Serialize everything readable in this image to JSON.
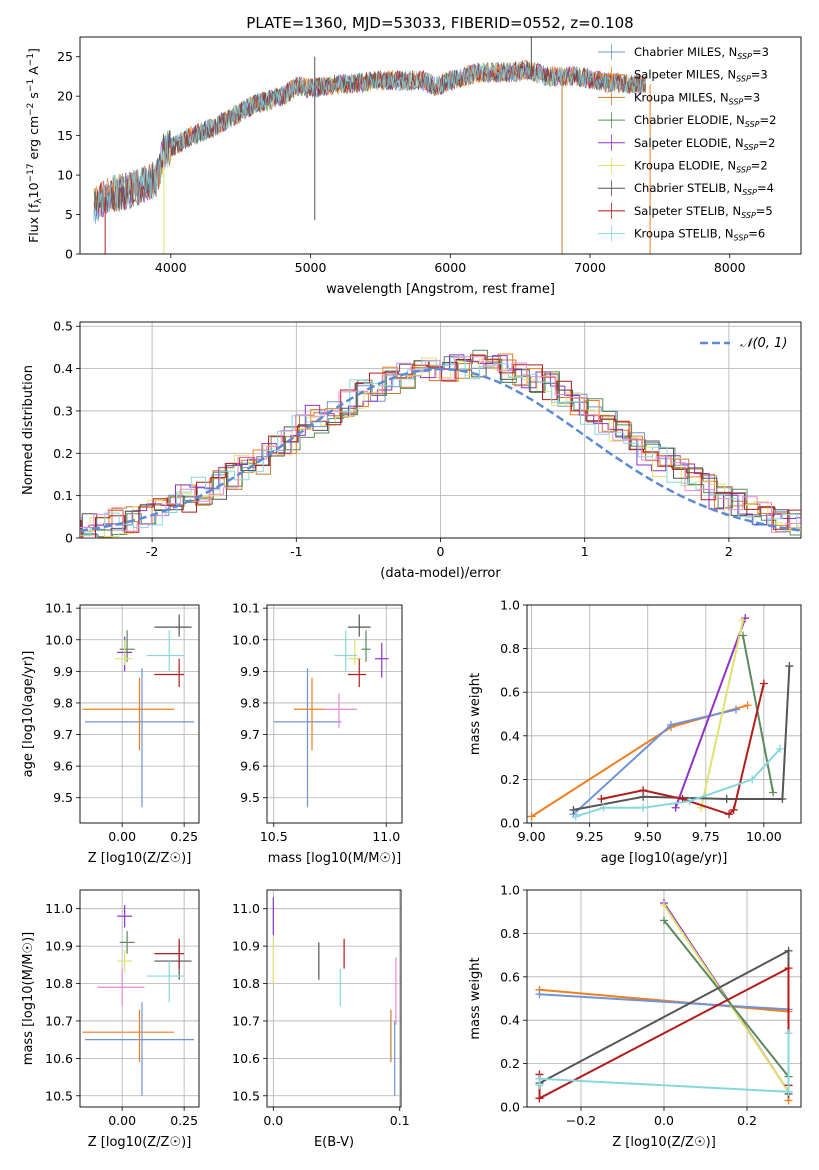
{
  "title": "PLATE=1360, MJD=53033, FIBERID=0552, z=0.108",
  "colors": {
    "chabrier_miles": "#7193d6",
    "salpeter_miles": "#f07f1e",
    "kroupa_miles": "#c77c30",
    "chabrier_elodie": "#5b8a5e",
    "salpeter_elodie": "#8f33c4",
    "kroupa_elodie": "#dfe36f",
    "chabrier_stelib": "#555555",
    "salpeter_stelib": "#b41c1c",
    "kroupa_stelib": "#86d8de",
    "pink": "#e88ad4",
    "normal_curve": "#5b8bd5"
  },
  "chart_data": [
    {
      "type": "line",
      "title": "PLATE=1360, MJD=53033, FIBERID=0552, z=0.108",
      "xlabel": "wavelength [Angstrom, rest frame]",
      "ylabel_parts": [
        "Flux [f",
        "λ",
        "10",
        "−17",
        " erg cm",
        "−2",
        " s",
        "−1",
        " A",
        "−1",
        "]"
      ],
      "xlim": [
        3350,
        8510
      ],
      "ylim": [
        0,
        27.5
      ],
      "xticks": [
        4000,
        5000,
        6000,
        7000,
        8000
      ],
      "yticks": [
        0,
        5,
        10,
        15,
        20,
        25
      ],
      "grid": false,
      "legend_position": "right",
      "legend": [
        {
          "key": "chabrier_miles",
          "label": "Chabrier MILES, N",
          "sub": "SSP",
          "tail": "=3"
        },
        {
          "key": "salpeter_miles",
          "label": "Salpeter MILES, N",
          "sub": "SSP",
          "tail": "=3"
        },
        {
          "key": "kroupa_miles",
          "label": "Kroupa MILES, N",
          "sub": "SSP",
          "tail": "=3"
        },
        {
          "key": "chabrier_elodie",
          "label": "Chabrier ELODIE, N",
          "sub": "SSP",
          "tail": "=2"
        },
        {
          "key": "salpeter_elodie",
          "label": "Salpeter ELODIE, N",
          "sub": "SSP",
          "tail": "=2"
        },
        {
          "key": "kroupa_elodie",
          "label": "Kroupa ELODIE, N",
          "sub": "SSP",
          "tail": "=2"
        },
        {
          "key": "chabrier_stelib",
          "label": "Chabrier STELIB, N",
          "sub": "SSP",
          "tail": "=4"
        },
        {
          "key": "salpeter_stelib",
          "label": "Salpeter STELIB, N",
          "sub": "SSP",
          "tail": "=5"
        },
        {
          "key": "kroupa_stelib",
          "label": "Kroupa STELIB, N",
          "sub": "SSP",
          "tail": "=6"
        }
      ],
      "spectrum_continuum": [
        [
          3450,
          6
        ],
        [
          3550,
          7.5
        ],
        [
          3700,
          8
        ],
        [
          3900,
          9.5
        ],
        [
          3950,
          13
        ],
        [
          4050,
          14
        ],
        [
          4150,
          15
        ],
        [
          4300,
          16
        ],
        [
          4400,
          17
        ],
        [
          4600,
          19
        ],
        [
          4800,
          20
        ],
        [
          4900,
          21.3
        ],
        [
          5000,
          21
        ],
        [
          5200,
          21.5
        ],
        [
          5500,
          22
        ],
        [
          5800,
          22
        ],
        [
          5900,
          21.2
        ],
        [
          6000,
          22
        ],
        [
          6200,
          23
        ],
        [
          6400,
          23
        ],
        [
          6560,
          23.3
        ],
        [
          6700,
          22.5
        ],
        [
          6900,
          22.5
        ],
        [
          7100,
          21.8
        ],
        [
          7300,
          21.5
        ],
        [
          7400,
          21.5
        ]
      ],
      "spectrum_spikes": [
        [
          3530,
          0
        ],
        [
          3950,
          0
        ],
        [
          5030,
          4.3
        ],
        [
          5030,
          25
        ],
        [
          6580,
          27.5
        ],
        [
          6800,
          0
        ],
        [
          7430,
          0
        ]
      ]
    },
    {
      "type": "bar",
      "xlabel": "(data-model)/error",
      "ylabel": "Normed distribution",
      "xlim": [
        -2.5,
        2.5
      ],
      "ylim": [
        0,
        0.51
      ],
      "xticks": [
        -2,
        -1,
        0,
        1,
        2
      ],
      "yticks": [
        0.0,
        0.1,
        0.2,
        0.3,
        0.4,
        0.5
      ],
      "grid": true,
      "legend_position": "top-right",
      "legend_label": "𝒩(0, 1)",
      "bin_width": 0.1,
      "base_values": [
        0.02,
        0.025,
        0.03,
        0.038,
        0.045,
        0.055,
        0.065,
        0.08,
        0.095,
        0.11,
        0.125,
        0.145,
        0.165,
        0.185,
        0.21,
        0.23,
        0.26,
        0.28,
        0.3,
        0.32,
        0.34,
        0.355,
        0.37,
        0.38,
        0.39,
        0.395,
        0.4,
        0.405,
        0.41,
        0.405,
        0.4,
        0.39,
        0.375,
        0.36,
        0.34,
        0.32,
        0.3,
        0.275,
        0.25,
        0.23,
        0.205,
        0.18,
        0.16,
        0.14,
        0.12,
        0.1,
        0.085,
        0.07,
        0.055,
        0.045,
        0.035,
        0.03
      ]
    },
    {
      "type": "scatter",
      "xlabel": "Z [log10(Z/Z☉)]",
      "ylabel": "age  [log10(age/yr)]",
      "xlim": [
        -0.17,
        0.31
      ],
      "ylim": [
        9.42,
        10.11
      ],
      "xticks": [
        "0.00",
        "0.25"
      ],
      "yticks": [
        "9.5",
        "9.6",
        "9.7",
        "9.8",
        "9.9",
        "10.0",
        "10.1"
      ],
      "grid": true,
      "errorbars": [
        {
          "c": "chabrier_miles",
          "x": 0.08,
          "xerr": [
            0.23,
            0.21
          ],
          "y": 9.74,
          "yerr": [
            0.27,
            0.17
          ]
        },
        {
          "c": "salpeter_miles",
          "x": 0.07,
          "xerr": [
            0.23,
            0.14
          ],
          "y": 9.78,
          "yerr": [
            0.13,
            0.1
          ]
        },
        {
          "c": "chabrier_elodie",
          "x": 0.02,
          "xerr": [
            0.03,
            0.03
          ],
          "y": 9.97,
          "yerr": [
            0.04,
            0.06
          ]
        },
        {
          "c": "salpeter_elodie",
          "x": 0.01,
          "xerr": [
            0.03,
            0.03
          ],
          "y": 9.96,
          "yerr": [
            0.06,
            0.05
          ]
        },
        {
          "c": "kroupa_elodie",
          "x": 0.01,
          "xerr": [
            0.04,
            0.03
          ],
          "y": 9.94,
          "yerr": [
            0.02,
            0.06
          ]
        },
        {
          "c": "chabrier_stelib",
          "x": 0.23,
          "xerr": [
            0.1,
            0.05
          ],
          "y": 10.04,
          "yerr": [
            0.03,
            0.04
          ]
        },
        {
          "c": "salpeter_stelib",
          "x": 0.23,
          "xerr": [
            0.1,
            0.02
          ],
          "y": 9.89,
          "yerr": [
            0.04,
            0.05
          ]
        },
        {
          "c": "kroupa_stelib",
          "x": 0.19,
          "xerr": [
            0.09,
            0.06
          ],
          "y": 9.95,
          "yerr": [
            0.05,
            0.08
          ]
        }
      ]
    },
    {
      "type": "scatter",
      "xlabel": "mass [log10(M/M☉)]",
      "ylabel": "",
      "xlim": [
        10.47,
        11.07
      ],
      "ylim": [
        9.42,
        10.11
      ],
      "xticks": [
        "10.5",
        "11.0"
      ],
      "yticks": [
        "9.5",
        "9.6",
        "9.7",
        "9.8",
        "9.9",
        "10.0",
        "10.1"
      ],
      "grid": true,
      "errorbars": [
        {
          "c": "chabrier_miles",
          "x": 10.65,
          "xerr": [
            0.15,
            0.15
          ],
          "y": 9.74,
          "yerr": [
            0.27,
            0.17
          ]
        },
        {
          "c": "salpeter_miles",
          "x": 10.67,
          "xerr": [
            0.08,
            0.06
          ],
          "y": 9.78,
          "yerr": [
            0.13,
            0.1
          ]
        },
        {
          "c": "pink",
          "x": 10.79,
          "xerr": [
            0.07,
            0.08
          ],
          "y": 9.78,
          "yerr": [
            0.06,
            0.05
          ]
        },
        {
          "c": "chabrier_elodie",
          "x": 10.91,
          "xerr": [
            0.02,
            0.02
          ],
          "y": 9.97,
          "yerr": [
            0.04,
            0.06
          ]
        },
        {
          "c": "salpeter_elodie",
          "x": 10.98,
          "xerr": [
            0.03,
            0.03
          ],
          "y": 9.94,
          "yerr": [
            0.06,
            0.05
          ]
        },
        {
          "c": "kroupa_elodie",
          "x": 10.86,
          "xerr": [
            0.03,
            0.03
          ],
          "y": 9.94,
          "yerr": [
            0.02,
            0.06
          ]
        },
        {
          "c": "chabrier_stelib",
          "x": 10.88,
          "xerr": [
            0.05,
            0.05
          ],
          "y": 10.04,
          "yerr": [
            0.03,
            0.04
          ]
        },
        {
          "c": "salpeter_stelib",
          "x": 10.88,
          "xerr": [
            0.05,
            0.03
          ],
          "y": 9.89,
          "yerr": [
            0.04,
            0.05
          ]
        },
        {
          "c": "kroupa_stelib",
          "x": 10.82,
          "xerr": [
            0.05,
            0.05
          ],
          "y": 9.95,
          "yerr": [
            0.05,
            0.08
          ]
        }
      ]
    },
    {
      "type": "line",
      "xlabel": "age  [log10(age/yr)]",
      "ylabel": "mass weight",
      "xlim": [
        8.98,
        10.16
      ],
      "ylim": [
        0,
        1.0
      ],
      "xticks": [
        "9.00",
        "9.25",
        "9.50",
        "9.75",
        "10.00"
      ],
      "yticks": [
        "0.0",
        "0.2",
        "0.4",
        "0.6",
        "0.8",
        "1.0"
      ],
      "grid": true,
      "series": [
        {
          "c": "salpeter_miles",
          "x": [
            9.0,
            9.6,
            9.93
          ],
          "y": [
            0.03,
            0.44,
            0.54
          ]
        },
        {
          "c": "chabrier_miles",
          "x": [
            9.18,
            9.6,
            9.88
          ],
          "y": [
            0.04,
            0.45,
            0.52
          ]
        },
        {
          "c": "salpeter_elodie",
          "x": [
            9.62,
            9.92
          ],
          "y": [
            0.07,
            0.94
          ]
        },
        {
          "c": "kroupa_elodie",
          "x": [
            9.73,
            9.91
          ],
          "y": [
            0.07,
            0.93
          ]
        },
        {
          "c": "chabrier_elodie",
          "x": [
            9.91,
            10.04
          ],
          "y": [
            0.86,
            0.14
          ]
        },
        {
          "c": "chabrier_stelib",
          "x": [
            9.18,
            9.48,
            9.84,
            10.08,
            10.11
          ],
          "y": [
            0.06,
            0.12,
            0.11,
            0.11,
            0.72
          ]
        },
        {
          "c": "salpeter_stelib",
          "x": [
            9.3,
            9.48,
            9.65,
            9.85,
            9.87,
            10.0
          ],
          "y": [
            0.11,
            0.15,
            0.11,
            0.04,
            0.06,
            0.64
          ]
        },
        {
          "c": "kroupa_stelib",
          "x": [
            9.19,
            9.31,
            9.48,
            9.68,
            9.95,
            10.07
          ],
          "y": [
            0.03,
            0.07,
            0.07,
            0.1,
            0.2,
            0.34
          ]
        }
      ]
    },
    {
      "type": "scatter",
      "xlabel": "Z [log10(Z/Z☉)]",
      "ylabel": "mass [log10(M/M☉)]",
      "xlim": [
        -0.17,
        0.31
      ],
      "ylim": [
        10.47,
        11.05
      ],
      "xticks": [
        "0.00",
        "0.25"
      ],
      "yticks": [
        "10.5",
        "10.6",
        "10.7",
        "10.8",
        "10.9",
        "11.0"
      ],
      "grid": true,
      "errorbars": [
        {
          "c": "chabrier_miles",
          "x": 0.08,
          "xerr": [
            0.23,
            0.21
          ],
          "y": 10.65,
          "yerr": [
            0.15,
            0.1
          ]
        },
        {
          "c": "salpeter_miles",
          "x": 0.07,
          "xerr": [
            0.23,
            0.14
          ],
          "y": 10.67,
          "yerr": [
            0.08,
            0.06
          ]
        },
        {
          "c": "pink",
          "x": 0.0,
          "xerr": [
            0.1,
            0.09
          ],
          "y": 10.79,
          "yerr": [
            0.05,
            0.05
          ]
        },
        {
          "c": "chabrier_elodie",
          "x": 0.02,
          "xerr": [
            0.03,
            0.03
          ],
          "y": 10.91,
          "yerr": [
            0.03,
            0.03
          ]
        },
        {
          "c": "salpeter_elodie",
          "x": 0.01,
          "xerr": [
            0.03,
            0.03
          ],
          "y": 10.98,
          "yerr": [
            0.03,
            0.03
          ]
        },
        {
          "c": "kroupa_elodie",
          "x": 0.01,
          "xerr": [
            0.03,
            0.03
          ],
          "y": 10.86,
          "yerr": [
            0.03,
            0.03
          ]
        },
        {
          "c": "chabrier_stelib",
          "x": 0.23,
          "xerr": [
            0.1,
            0.05
          ],
          "y": 10.86,
          "yerr": [
            0.05,
            0.05
          ]
        },
        {
          "c": "salpeter_stelib",
          "x": 0.23,
          "xerr": [
            0.1,
            0.02
          ],
          "y": 10.88,
          "yerr": [
            0.04,
            0.04
          ]
        },
        {
          "c": "kroupa_stelib",
          "x": 0.19,
          "xerr": [
            0.09,
            0.06
          ],
          "y": 10.82,
          "yerr": [
            0.07,
            0.04
          ]
        }
      ]
    },
    {
      "type": "scatter",
      "xlabel": "E(B-V)",
      "ylabel": "",
      "xlim": [
        -0.005,
        0.101
      ],
      "ylim": [
        10.47,
        11.05
      ],
      "xticks": [
        "0.0",
        "0.1"
      ],
      "yticks": [
        "10.5",
        "10.6",
        "10.7",
        "10.8",
        "10.9",
        "11.0"
      ],
      "grid": true,
      "errorbars": [
        {
          "c": "salpeter_elodie",
          "x": 0.0,
          "xerr": [
            0,
            0
          ],
          "y": 10.98,
          "yerr": [
            0.05,
            0.05
          ]
        },
        {
          "c": "kroupa_elodie",
          "x": 0.0,
          "xerr": [
            0,
            0
          ],
          "y": 10.86,
          "yerr": [
            0.06,
            0.06
          ]
        },
        {
          "c": "chabrier_stelib",
          "x": 0.036,
          "xerr": [
            0,
            0
          ],
          "y": 10.86,
          "yerr": [
            0.05,
            0.05
          ]
        },
        {
          "c": "salpeter_stelib",
          "x": 0.056,
          "xerr": [
            0,
            0
          ],
          "y": 10.88,
          "yerr": [
            0.04,
            0.04
          ]
        },
        {
          "c": "kroupa_stelib",
          "x": 0.053,
          "xerr": [
            0,
            0
          ],
          "y": 10.79,
          "yerr": [
            0.05,
            0.05
          ]
        },
        {
          "c": "kroupa_miles",
          "x": 0.093,
          "xerr": [
            0,
            0
          ],
          "y": 10.66,
          "yerr": [
            0.07,
            0.07
          ]
        },
        {
          "c": "chabrier_miles",
          "x": 0.096,
          "xerr": [
            0,
            0
          ],
          "y": 10.6,
          "yerr": [
            0.1,
            0.1
          ]
        },
        {
          "c": "pink",
          "x": 0.097,
          "xerr": [
            0,
            0
          ],
          "y": 10.78,
          "yerr": [
            0.09,
            0.09
          ]
        }
      ]
    },
    {
      "type": "line",
      "xlabel": "Z [log10(Z/Z☉)]",
      "ylabel": "mass weight",
      "xlim": [
        -0.33,
        0.33
      ],
      "ylim": [
        0,
        1.0
      ],
      "xticks": [
        "−0.2",
        "0.0",
        "0.2"
      ],
      "yticks": [
        "0.0",
        "0.2",
        "0.4",
        "0.6",
        "0.8",
        "1.0"
      ],
      "grid": true,
      "series": [
        {
          "c": "salpeter_miles",
          "x": [
            -0.3,
            0.3,
            0.3
          ],
          "y": [
            0.54,
            0.44,
            0.03
          ]
        },
        {
          "c": "chabrier_miles",
          "x": [
            -0.3,
            0.3
          ],
          "y": [
            0.52,
            0.45
          ]
        },
        {
          "c": "salpeter_elodie",
          "x": [
            0.0,
            0.3
          ],
          "y": [
            0.94,
            0.07
          ]
        },
        {
          "c": "kroupa_elodie",
          "x": [
            0.0,
            0.3
          ],
          "y": [
            0.93,
            0.07
          ]
        },
        {
          "c": "chabrier_elodie",
          "x": [
            0.0,
            0.3
          ],
          "y": [
            0.86,
            0.14
          ]
        },
        {
          "c": "chabrier_stelib",
          "x": [
            -0.3,
            0.3,
            0.3
          ],
          "y": [
            0.11,
            0.72,
            0.06
          ]
        },
        {
          "c": "salpeter_stelib",
          "x": [
            -0.3,
            -0.3,
            0.3,
            0.3
          ],
          "y": [
            0.15,
            0.04,
            0.64,
            0.1
          ]
        },
        {
          "c": "kroupa_stelib",
          "x": [
            -0.3,
            -0.3,
            0.3,
            0.3
          ],
          "y": [
            0.1,
            0.13,
            0.07,
            0.34
          ]
        }
      ]
    }
  ]
}
